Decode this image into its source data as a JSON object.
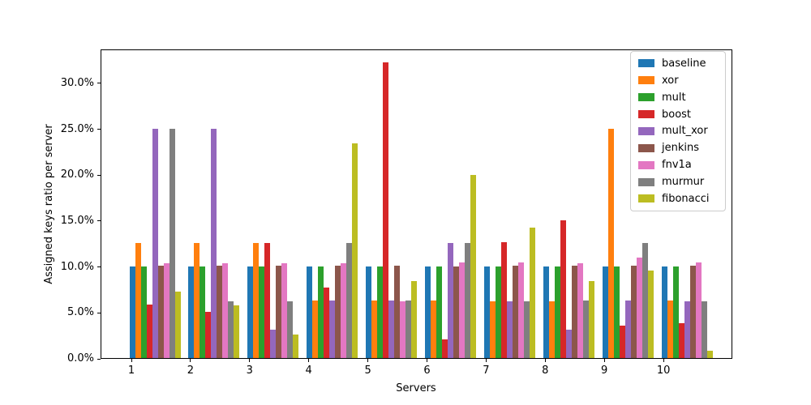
{
  "chart_data": {
    "type": "bar",
    "title": "",
    "xlabel": "Servers",
    "ylabel": "Assigned keys ratio per server",
    "categories": [
      "1",
      "2",
      "3",
      "4",
      "5",
      "6",
      "7",
      "8",
      "9",
      "10"
    ],
    "series": [
      {
        "name": "baseline",
        "color": "#1f77b4",
        "values": [
          10.0,
          10.0,
          10.0,
          10.0,
          10.0,
          10.0,
          10.0,
          10.0,
          10.0,
          10.0
        ]
      },
      {
        "name": "xor",
        "color": "#ff7f0e",
        "values": [
          12.5,
          12.5,
          12.5,
          6.3,
          6.3,
          6.3,
          6.2,
          6.2,
          25.0,
          6.3
        ]
      },
      {
        "name": "mult",
        "color": "#2ca02c",
        "values": [
          10.0,
          10.0,
          10.0,
          10.0,
          10.0,
          10.0,
          10.0,
          10.0,
          10.0,
          10.0
        ]
      },
      {
        "name": "boost",
        "color": "#d62728",
        "values": [
          5.8,
          5.0,
          12.5,
          7.7,
          32.2,
          2.0,
          12.6,
          15.0,
          3.5,
          3.8
        ]
      },
      {
        "name": "mult_xor",
        "color": "#9467bd",
        "values": [
          25.0,
          25.0,
          3.1,
          6.3,
          6.3,
          12.5,
          6.2,
          3.1,
          6.3,
          6.2
        ]
      },
      {
        "name": "jenkins",
        "color": "#8c564b",
        "values": [
          10.1,
          10.1,
          10.1,
          10.1,
          10.1,
          10.0,
          10.1,
          10.1,
          10.1,
          10.1
        ]
      },
      {
        "name": "fnv1a",
        "color": "#e377c2",
        "values": [
          10.3,
          10.3,
          10.3,
          10.3,
          6.2,
          10.4,
          10.4,
          10.3,
          10.9,
          10.4
        ]
      },
      {
        "name": "murmur",
        "color": "#7f7f7f",
        "values": [
          25.0,
          6.2,
          6.2,
          12.5,
          6.3,
          12.5,
          6.2,
          6.3,
          12.5,
          6.2
        ]
      },
      {
        "name": "fibonacci",
        "color": "#bcbd22",
        "values": [
          7.2,
          5.7,
          2.6,
          23.4,
          8.4,
          19.9,
          14.2,
          8.4,
          9.5,
          0.8
        ]
      }
    ],
    "yticks": [
      "0.0%",
      "5.0%",
      "10.0%",
      "15.0%",
      "20.0%",
      "25.0%",
      "30.0%"
    ],
    "ytick_values": [
      0,
      5,
      10,
      15,
      20,
      25,
      30
    ],
    "ylim": [
      0,
      33.7
    ],
    "grid": false,
    "legend_position": "upper right"
  }
}
